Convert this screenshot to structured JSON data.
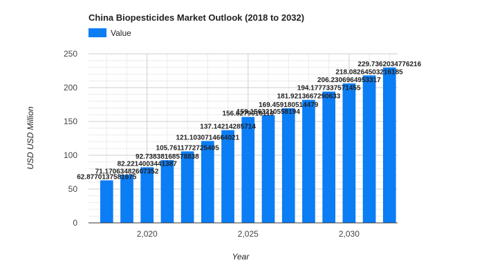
{
  "chart_data": {
    "type": "bar",
    "title": "China Biopesticides Market Outlook (2018 to 2032)",
    "xlabel": "Year",
    "ylabel": "USD USD Million",
    "x": [
      2018,
      2019,
      2020,
      2021,
      2022,
      2023,
      2024,
      2025,
      2026,
      2027,
      2028,
      2029,
      2030,
      2031,
      2032
    ],
    "x_tick_values": [
      2020,
      2025,
      2030
    ],
    "x_tick_labels": [
      "2,020",
      "2,025",
      "2,030"
    ],
    "xlim": [
      2017.1,
      2032.4
    ],
    "ylim": [
      0,
      250
    ],
    "y_ticks": [
      0,
      50,
      100,
      150,
      200,
      250
    ],
    "grid": true,
    "legend_position": "top-left",
    "series": [
      {
        "name": "Value",
        "color": "#0b7df5",
        "values": [
          62.87701375816675,
          71.17063482607352,
          82.2214003441387,
          92.73838168578838,
          105.76117727254056,
          121.10307146640218,
          137.14214285714286,
          156.627901611,
          159.15632105581946,
          169.45918051447902,
          181.9213667290633,
          194.17773375714552,
          206.23069649533176,
          218.08264503216185,
          229.7362034776216
        ],
        "labels": [
          "62.8770137581675",
          "71.17063482607352",
          "82.2214003441387",
          "92.73838168578838",
          "105.7611772725405",
          "121.1030714664021",
          "137.14214285714",
          "156.6279016110",
          "159.1563210558194",
          "169.459180514479",
          "181.9213667290633",
          "194.1777337571455",
          "206.2306964953317",
          "218.08264503216185",
          "229.7362034776216"
        ]
      }
    ]
  }
}
